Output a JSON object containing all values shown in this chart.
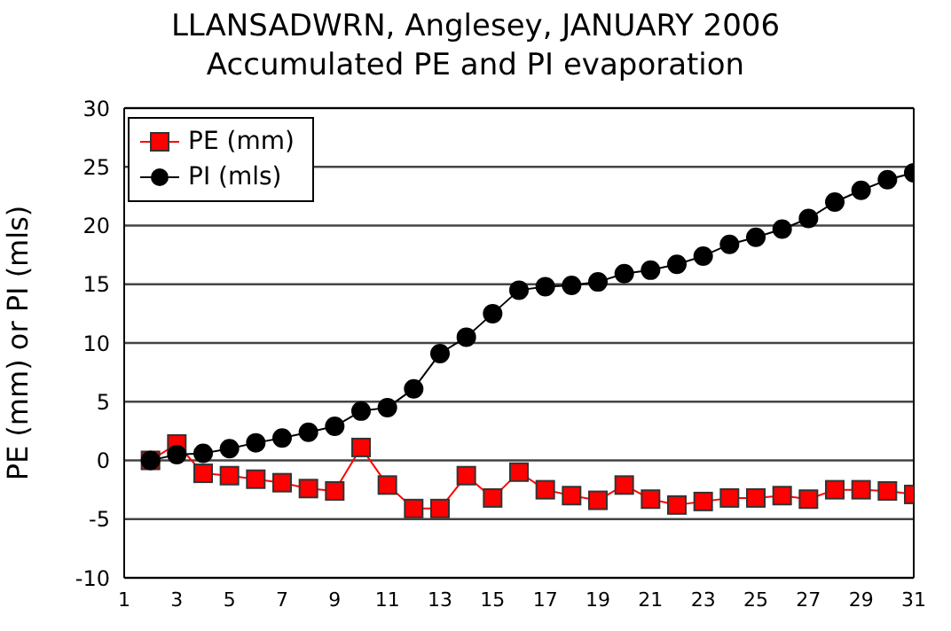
{
  "chart_data": {
    "type": "line",
    "title": "LLANSADWRN, Anglesey, JANUARY 2006",
    "subtitle": "Accumulated PE and PI evaporation",
    "ylabel": "PE (mm) or PI (mls)",
    "x": [
      2,
      3,
      4,
      5,
      6,
      7,
      8,
      9,
      10,
      11,
      12,
      13,
      14,
      15,
      16,
      17,
      18,
      19,
      20,
      21,
      22,
      23,
      24,
      25,
      26,
      27,
      28,
      29,
      30,
      31
    ],
    "series": [
      {
        "name": "PE (mm)",
        "color": "#ff0000",
        "marker": "square",
        "values": [
          0,
          1.4,
          -1.1,
          -1.3,
          -1.6,
          -1.9,
          -2.4,
          -2.6,
          1.1,
          -2.1,
          -4.1,
          -4.1,
          -1.3,
          -3.2,
          -1.0,
          -2.5,
          -3.0,
          -3.4,
          -2.1,
          -3.3,
          -3.8,
          -3.5,
          -3.2,
          -3.2,
          -3.0,
          -3.3,
          -2.5,
          -2.5,
          -2.6,
          -2.9
        ]
      },
      {
        "name": "PI (mls)",
        "color": "#000000",
        "marker": "circle",
        "values": [
          0,
          0.5,
          0.6,
          1.0,
          1.5,
          1.9,
          2.4,
          2.9,
          4.2,
          4.5,
          6.1,
          9.1,
          10.5,
          12.5,
          14.5,
          14.8,
          14.9,
          15.2,
          15.9,
          16.2,
          16.7,
          17.4,
          18.4,
          19.0,
          19.7,
          20.6,
          22.0,
          23.0,
          23.9,
          24.5
        ]
      }
    ],
    "xlim": [
      1,
      31
    ],
    "xticks": [
      1,
      3,
      5,
      7,
      9,
      11,
      13,
      15,
      17,
      19,
      21,
      23,
      25,
      27,
      29,
      31
    ],
    "ylim": [
      -10,
      30
    ],
    "yticks": [
      -10,
      -5,
      0,
      5,
      10,
      15,
      20,
      25,
      30
    ],
    "grid": "y",
    "legend": "top left",
    "line_style": "solid"
  }
}
